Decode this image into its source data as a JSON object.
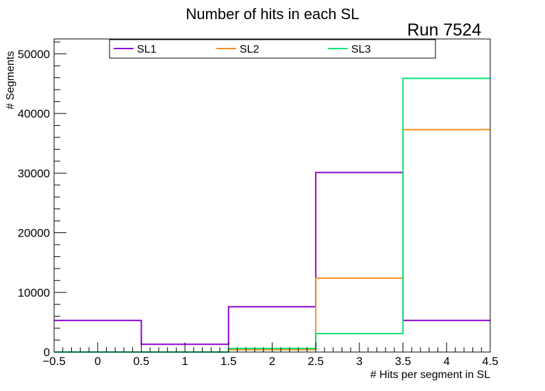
{
  "chart_data": {
    "type": "step-histogram",
    "title": "Number of hits in each SL",
    "annotation": "Run 7524",
    "xlabel": "# Hits per segment in SL",
    "ylabel": "# Segments",
    "xlim": [
      -0.5,
      4.5
    ],
    "ylim": [
      0,
      52500
    ],
    "xticks": [
      -0.5,
      0,
      0.5,
      1,
      1.5,
      2,
      2.5,
      3,
      3.5,
      4,
      4.5
    ],
    "xtick_labels": [
      "−0.5",
      "0",
      "0.5",
      "1",
      "1.5",
      "2",
      "2.5",
      "3",
      "3.5",
      "4",
      "4.5"
    ],
    "yticks": [
      0,
      10000,
      20000,
      30000,
      40000,
      50000
    ],
    "ytick_labels": [
      "0",
      "10000",
      "20000",
      "30000",
      "40000",
      "50000"
    ],
    "bin_edges": [
      -0.5,
      0.5,
      1.5,
      2.5,
      3.5,
      4.5
    ],
    "categories": [
      "0",
      "1",
      "2",
      "3",
      "4"
    ],
    "series": [
      {
        "name": "SL1",
        "color": "#8a00d4",
        "values": [
          5300,
          1300,
          7600,
          30100,
          5300
        ]
      },
      {
        "name": "SL2",
        "color": "#ff8c1a",
        "values": [
          0,
          0,
          400,
          12400,
          37300
        ]
      },
      {
        "name": "SL3",
        "color": "#00e676",
        "values": [
          0,
          0,
          600,
          3100,
          45900
        ]
      }
    ],
    "legend": {
      "placement": "top",
      "entries": [
        "SL1",
        "SL2",
        "SL3"
      ]
    },
    "grid": false
  }
}
